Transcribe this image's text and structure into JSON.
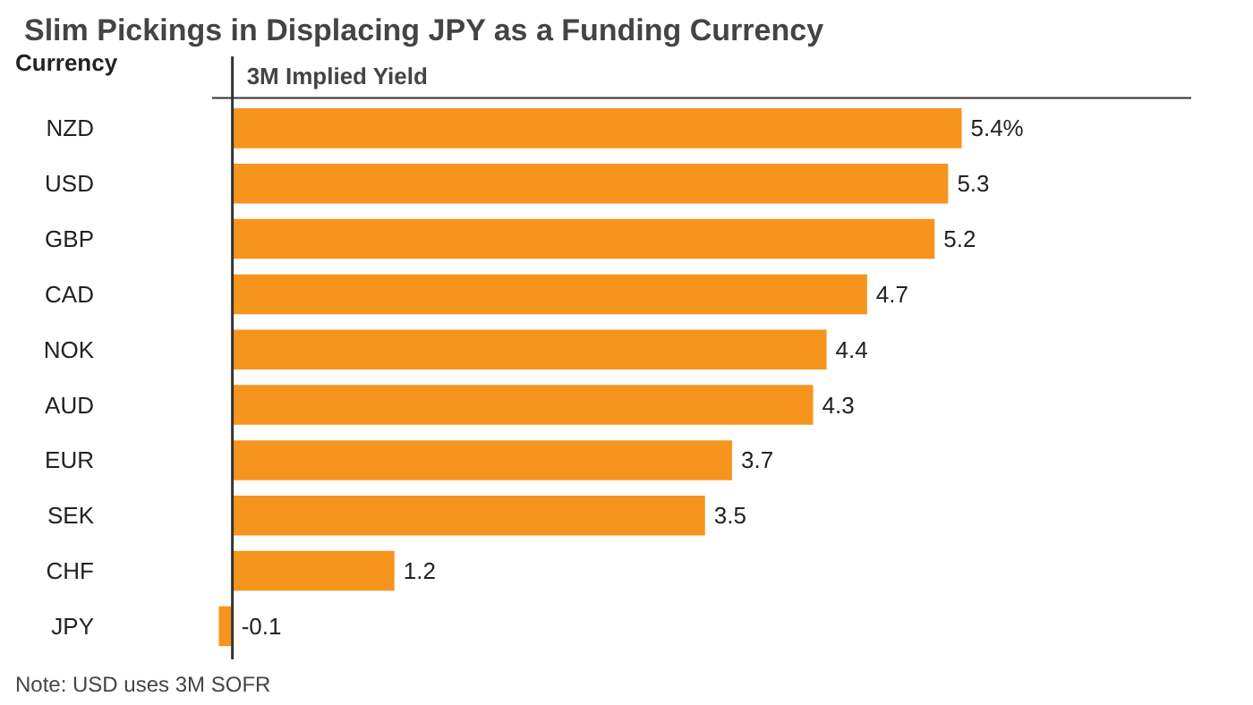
{
  "chart_data": {
    "type": "bar",
    "orientation": "horizontal",
    "title": "Slim Pickings in Displacing JPY as a Funding Currency",
    "ylabel": "Currency",
    "xlabel": "3M Implied Yield",
    "categories": [
      "NZD",
      "USD",
      "GBP",
      "CAD",
      "NOK",
      "AUD",
      "EUR",
      "SEK",
      "CHF",
      "JPY"
    ],
    "values": [
      5.4,
      5.3,
      5.2,
      4.7,
      4.4,
      4.3,
      3.7,
      3.5,
      1.2,
      -0.1
    ],
    "value_labels": [
      "5.4%",
      "5.3",
      "5.2",
      "4.7",
      "4.4",
      "4.3",
      "3.7",
      "3.5",
      "1.2",
      "-0.1"
    ],
    "color": "#f7941d",
    "xlim": [
      -0.15,
      7.1
    ],
    "annotations": [
      "Note: USD uses 3M SOFR"
    ]
  }
}
